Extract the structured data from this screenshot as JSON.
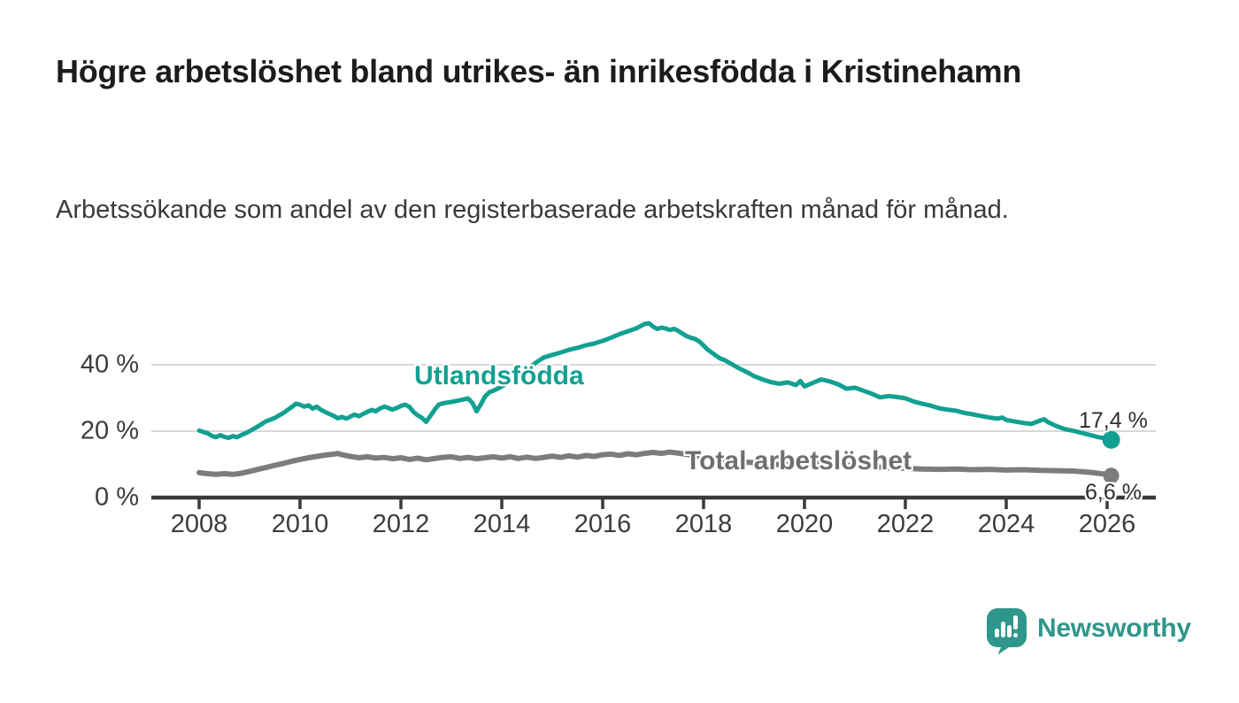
{
  "title": "Högre arbetslöshet bland utrikes- än inrikesfödda i Kristinehamn",
  "subtitle": "Arbetssökande som andel av den registerbaserade arbetskraften månad för månad.",
  "branding": {
    "logo_text": "Newsworthy",
    "logo_color": "#2F968B"
  },
  "chart_data": {
    "type": "line",
    "title": "Högre arbetslöshet bland utrikes- än inrikesfödda i Kristinehamn",
    "subtitle": "Arbetssökande som andel av den registerbaserade arbetskraften månad för månad.",
    "xlabel": "",
    "ylabel": "",
    "grid": "horizontal",
    "grid_color": "#d9d9d9",
    "axis_color": "#3a3a3a",
    "xlim": [
      2007.1,
      2026.95
    ],
    "ylim": [
      0,
      55
    ],
    "x_ticks": [
      2008,
      2010,
      2012,
      2014,
      2016,
      2018,
      2020,
      2022,
      2024,
      2026
    ],
    "x_tick_labels": [
      "2008",
      "2010",
      "2012",
      "2014",
      "2016",
      "2018",
      "2020",
      "2022",
      "2024",
      "2026"
    ],
    "y_ticks": [
      0,
      20,
      40
    ],
    "y_tick_labels": [
      "0 %",
      "20 %",
      "40 %"
    ],
    "series": [
      {
        "name": "Utlandsfödda",
        "color": "#12A091",
        "label_color": "#12A091",
        "line_width": 5,
        "dot_radius": 10,
        "end_label": "17,4 %",
        "end_value": 17.4,
        "points": [
          [
            2008.0,
            20.2
          ],
          [
            2008.08,
            19.8
          ],
          [
            2008.17,
            19.4
          ],
          [
            2008.25,
            18.6
          ],
          [
            2008.33,
            18.2
          ],
          [
            2008.42,
            18.8
          ],
          [
            2008.5,
            18.3
          ],
          [
            2008.58,
            18.0
          ],
          [
            2008.67,
            18.5
          ],
          [
            2008.75,
            18.2
          ],
          [
            2008.83,
            18.8
          ],
          [
            2008.92,
            19.4
          ],
          [
            2009.0,
            20.0
          ],
          [
            2009.17,
            21.5
          ],
          [
            2009.33,
            23.0
          ],
          [
            2009.5,
            24.0
          ],
          [
            2009.67,
            25.5
          ],
          [
            2009.83,
            27.2
          ],
          [
            2009.92,
            28.3
          ],
          [
            2010.0,
            28.0
          ],
          [
            2010.08,
            27.4
          ],
          [
            2010.17,
            27.8
          ],
          [
            2010.25,
            26.8
          ],
          [
            2010.33,
            27.4
          ],
          [
            2010.42,
            26.4
          ],
          [
            2010.5,
            25.8
          ],
          [
            2010.58,
            25.2
          ],
          [
            2010.67,
            24.6
          ],
          [
            2010.75,
            23.9
          ],
          [
            2010.83,
            24.3
          ],
          [
            2010.92,
            23.8
          ],
          [
            2011.0,
            24.4
          ],
          [
            2011.08,
            25.0
          ],
          [
            2011.17,
            24.5
          ],
          [
            2011.25,
            25.2
          ],
          [
            2011.33,
            25.8
          ],
          [
            2011.42,
            26.4
          ],
          [
            2011.5,
            26.0
          ],
          [
            2011.58,
            26.8
          ],
          [
            2011.67,
            27.4
          ],
          [
            2011.75,
            27.0
          ],
          [
            2011.83,
            26.5
          ],
          [
            2011.92,
            27.0
          ],
          [
            2012.0,
            27.6
          ],
          [
            2012.08,
            28.0
          ],
          [
            2012.17,
            27.3
          ],
          [
            2012.25,
            25.8
          ],
          [
            2012.33,
            24.8
          ],
          [
            2012.42,
            24.0
          ],
          [
            2012.5,
            22.8
          ],
          [
            2012.58,
            24.5
          ],
          [
            2012.67,
            26.5
          ],
          [
            2012.75,
            28.0
          ],
          [
            2012.83,
            28.4
          ],
          [
            2013.0,
            28.8
          ],
          [
            2013.17,
            29.3
          ],
          [
            2013.33,
            29.9
          ],
          [
            2013.42,
            28.5
          ],
          [
            2013.5,
            26.0
          ],
          [
            2013.58,
            28.0
          ],
          [
            2013.67,
            30.5
          ],
          [
            2013.75,
            31.7
          ],
          [
            2013.83,
            32.2
          ],
          [
            2013.92,
            32.8
          ],
          [
            2014.0,
            33.5
          ],
          [
            2014.17,
            35.0
          ],
          [
            2014.33,
            36.8
          ],
          [
            2014.5,
            38.6
          ],
          [
            2014.67,
            40.6
          ],
          [
            2014.83,
            42.2
          ],
          [
            2015.0,
            43.0
          ],
          [
            2015.17,
            43.7
          ],
          [
            2015.33,
            44.5
          ],
          [
            2015.5,
            45.1
          ],
          [
            2015.67,
            45.9
          ],
          [
            2015.83,
            46.4
          ],
          [
            2016.0,
            47.2
          ],
          [
            2016.17,
            48.2
          ],
          [
            2016.33,
            49.2
          ],
          [
            2016.5,
            50.1
          ],
          [
            2016.67,
            51.0
          ],
          [
            2016.83,
            52.3
          ],
          [
            2016.92,
            52.5
          ],
          [
            2017.0,
            51.5
          ],
          [
            2017.08,
            50.8
          ],
          [
            2017.17,
            51.2
          ],
          [
            2017.25,
            50.9
          ],
          [
            2017.33,
            50.5
          ],
          [
            2017.42,
            50.8
          ],
          [
            2017.5,
            50.2
          ],
          [
            2017.58,
            49.4
          ],
          [
            2017.67,
            48.6
          ],
          [
            2017.75,
            48.1
          ],
          [
            2017.83,
            47.8
          ],
          [
            2017.92,
            47.0
          ],
          [
            2018.0,
            45.8
          ],
          [
            2018.08,
            44.6
          ],
          [
            2018.17,
            43.6
          ],
          [
            2018.25,
            42.7
          ],
          [
            2018.33,
            41.9
          ],
          [
            2018.42,
            41.4
          ],
          [
            2018.5,
            40.7
          ],
          [
            2018.58,
            40.0
          ],
          [
            2018.67,
            39.2
          ],
          [
            2018.75,
            38.6
          ],
          [
            2018.83,
            38.0
          ],
          [
            2018.92,
            37.3
          ],
          [
            2019.0,
            36.6
          ],
          [
            2019.17,
            35.6
          ],
          [
            2019.33,
            34.8
          ],
          [
            2019.5,
            34.3
          ],
          [
            2019.67,
            34.7
          ],
          [
            2019.83,
            33.9
          ],
          [
            2019.92,
            35.1
          ],
          [
            2020.0,
            33.5
          ],
          [
            2020.17,
            34.6
          ],
          [
            2020.33,
            35.6
          ],
          [
            2020.5,
            35.0
          ],
          [
            2020.67,
            34.1
          ],
          [
            2020.83,
            32.8
          ],
          [
            2021.0,
            33.1
          ],
          [
            2021.17,
            32.2
          ],
          [
            2021.33,
            31.3
          ],
          [
            2021.5,
            30.2
          ],
          [
            2021.67,
            30.6
          ],
          [
            2021.83,
            30.3
          ],
          [
            2022.0,
            29.9
          ],
          [
            2022.17,
            28.9
          ],
          [
            2022.33,
            28.3
          ],
          [
            2022.5,
            27.7
          ],
          [
            2022.67,
            26.9
          ],
          [
            2022.83,
            26.5
          ],
          [
            2023.0,
            26.2
          ],
          [
            2023.17,
            25.5
          ],
          [
            2023.33,
            25.1
          ],
          [
            2023.5,
            24.6
          ],
          [
            2023.67,
            24.1
          ],
          [
            2023.83,
            23.8
          ],
          [
            2023.92,
            24.1
          ],
          [
            2024.0,
            23.4
          ],
          [
            2024.17,
            22.9
          ],
          [
            2024.33,
            22.5
          ],
          [
            2024.5,
            22.2
          ],
          [
            2024.67,
            23.2
          ],
          [
            2024.75,
            23.6
          ],
          [
            2024.83,
            22.7
          ],
          [
            2025.0,
            21.5
          ],
          [
            2025.17,
            20.6
          ],
          [
            2025.33,
            20.1
          ],
          [
            2025.5,
            19.5
          ],
          [
            2025.67,
            18.8
          ],
          [
            2025.83,
            18.2
          ],
          [
            2026.0,
            17.7
          ],
          [
            2026.08,
            17.4
          ]
        ]
      },
      {
        "name": "Total arbetslöshet",
        "color": "#7C7C7C",
        "label_color": "#6F6F6F",
        "line_width": 6,
        "dot_radius": 9,
        "end_label": "6,6 %",
        "end_value": 6.6,
        "points": [
          [
            2008.0,
            7.5
          ],
          [
            2008.17,
            7.2
          ],
          [
            2008.33,
            7.0
          ],
          [
            2008.5,
            7.2
          ],
          [
            2008.67,
            7.0
          ],
          [
            2008.83,
            7.3
          ],
          [
            2009.0,
            7.9
          ],
          [
            2009.17,
            8.5
          ],
          [
            2009.33,
            9.1
          ],
          [
            2009.5,
            9.7
          ],
          [
            2009.67,
            10.3
          ],
          [
            2009.83,
            10.9
          ],
          [
            2010.0,
            11.5
          ],
          [
            2010.17,
            12.0
          ],
          [
            2010.33,
            12.4
          ],
          [
            2010.5,
            12.8
          ],
          [
            2010.67,
            13.1
          ],
          [
            2010.75,
            13.3
          ],
          [
            2010.83,
            12.9
          ],
          [
            2011.0,
            12.4
          ],
          [
            2011.17,
            12.0
          ],
          [
            2011.33,
            12.3
          ],
          [
            2011.5,
            11.9
          ],
          [
            2011.67,
            12.1
          ],
          [
            2011.83,
            11.7
          ],
          [
            2012.0,
            12.0
          ],
          [
            2012.17,
            11.5
          ],
          [
            2012.33,
            11.9
          ],
          [
            2012.5,
            11.4
          ],
          [
            2012.67,
            11.8
          ],
          [
            2012.83,
            12.1
          ],
          [
            2013.0,
            12.3
          ],
          [
            2013.17,
            11.8
          ],
          [
            2013.33,
            12.1
          ],
          [
            2013.5,
            11.7
          ],
          [
            2013.67,
            12.0
          ],
          [
            2013.83,
            12.3
          ],
          [
            2014.0,
            11.9
          ],
          [
            2014.17,
            12.3
          ],
          [
            2014.33,
            11.8
          ],
          [
            2014.5,
            12.2
          ],
          [
            2014.67,
            11.8
          ],
          [
            2014.83,
            12.1
          ],
          [
            2015.0,
            12.5
          ],
          [
            2015.17,
            12.1
          ],
          [
            2015.33,
            12.6
          ],
          [
            2015.5,
            12.2
          ],
          [
            2015.67,
            12.7
          ],
          [
            2015.83,
            12.4
          ],
          [
            2016.0,
            12.9
          ],
          [
            2016.17,
            13.1
          ],
          [
            2016.33,
            12.7
          ],
          [
            2016.5,
            13.2
          ],
          [
            2016.67,
            12.9
          ],
          [
            2016.83,
            13.3
          ],
          [
            2017.0,
            13.6
          ],
          [
            2017.17,
            13.3
          ],
          [
            2017.33,
            13.7
          ],
          [
            2017.5,
            13.4
          ],
          [
            2017.67,
            13.0
          ],
          [
            2017.83,
            12.7
          ],
          [
            2018.0,
            12.3
          ],
          [
            2018.17,
            11.9
          ],
          [
            2018.33,
            11.5
          ],
          [
            2018.5,
            11.2
          ],
          [
            2018.67,
            11.0
          ],
          [
            2018.83,
            10.7
          ],
          [
            2019.0,
            10.5
          ],
          [
            2019.33,
            10.1
          ],
          [
            2019.67,
            9.8
          ],
          [
            2020.0,
            9.6
          ],
          [
            2020.17,
            10.0
          ],
          [
            2020.33,
            10.4
          ],
          [
            2020.5,
            10.2
          ],
          [
            2020.67,
            9.9
          ],
          [
            2021.0,
            9.6
          ],
          [
            2021.33,
            9.3
          ],
          [
            2021.67,
            9.0
          ],
          [
            2022.0,
            8.8
          ],
          [
            2022.33,
            8.6
          ],
          [
            2022.67,
            8.5
          ],
          [
            2023.0,
            8.6
          ],
          [
            2023.33,
            8.4
          ],
          [
            2023.67,
            8.5
          ],
          [
            2024.0,
            8.3
          ],
          [
            2024.33,
            8.4
          ],
          [
            2024.67,
            8.2
          ],
          [
            2025.0,
            8.1
          ],
          [
            2025.33,
            8.0
          ],
          [
            2025.67,
            7.6
          ],
          [
            2026.0,
            7.0
          ],
          [
            2026.08,
            6.6
          ]
        ]
      }
    ]
  }
}
